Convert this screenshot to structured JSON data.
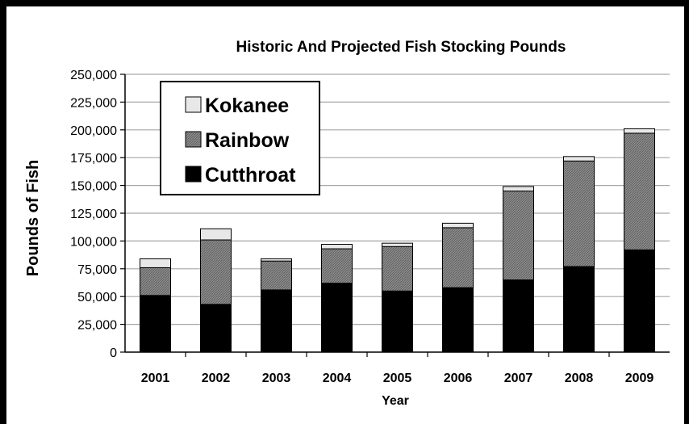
{
  "chart_data": {
    "type": "bar",
    "stacked": true,
    "title": "Historic And Projected Fish Stocking Pounds",
    "xlabel": "Year",
    "ylabel": "Pounds of Fish",
    "ylim": [
      0,
      250000
    ],
    "yticks": [
      "0",
      "25,000",
      "50,000",
      "75,000",
      "100,000",
      "125,000",
      "150,000",
      "175,000",
      "200,000",
      "225,000",
      "250,000"
    ],
    "grid": true,
    "legend_position": "top-left",
    "categories": [
      "2001",
      "2002",
      "2003",
      "2004",
      "2005",
      "2006",
      "2007",
      "2008",
      "2009"
    ],
    "series": [
      {
        "name": "Cutthroat",
        "color": "#000000",
        "values": [
          51000,
          43000,
          56000,
          62000,
          55000,
          58000,
          65000,
          77000,
          92000
        ]
      },
      {
        "name": "Rainbow",
        "color": "#808080",
        "values": [
          25000,
          58000,
          26000,
          31000,
          40000,
          54000,
          80000,
          95000,
          105000
        ]
      },
      {
        "name": "Kokanee",
        "color": "#e6e6e6",
        "values": [
          8000,
          10000,
          2000,
          4000,
          3000,
          4000,
          4000,
          4000,
          4000
        ]
      }
    ],
    "legend_order": [
      "Kokanee",
      "Rainbow",
      "Cutthroat"
    ]
  }
}
